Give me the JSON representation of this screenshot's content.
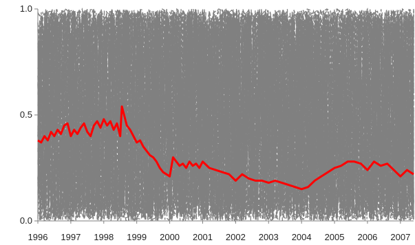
{
  "chart_data": {
    "type": "line",
    "title": "",
    "xlabel": "",
    "ylabel": "",
    "ylim": [
      0.0,
      1.0
    ],
    "xlim": [
      1996.0,
      2007.4
    ],
    "y_ticks": [
      {
        "value": 0.0,
        "label": "0.0"
      },
      {
        "value": 0.5,
        "label": "0.5"
      },
      {
        "value": 1.0,
        "label": "1.0"
      }
    ],
    "x_ticks": [
      {
        "value": 1996,
        "label": "1996"
      },
      {
        "value": 1997,
        "label": "1997"
      },
      {
        "value": 1998,
        "label": "1998"
      },
      {
        "value": 1999,
        "label": "1999"
      },
      {
        "value": 2000,
        "label": "2000"
      },
      {
        "value": 2001,
        "label": "2001"
      },
      {
        "value": 2002,
        "label": "2002"
      },
      {
        "value": 2003,
        "label": "2003"
      },
      {
        "value": 2004,
        "label": "2004"
      },
      {
        "value": 2005,
        "label": "2005"
      },
      {
        "value": 2006,
        "label": "2006"
      },
      {
        "value": 2007,
        "label": "2007"
      }
    ],
    "background_series": {
      "color": "#808080",
      "style": "dashed",
      "description_count_hint": "many"
    },
    "series": [
      {
        "color": "#ff0000",
        "x": [
          1996.0,
          1996.1,
          1996.2,
          1996.3,
          1996.4,
          1996.5,
          1996.6,
          1996.7,
          1996.8,
          1996.9,
          1997.0,
          1997.1,
          1997.2,
          1997.3,
          1997.4,
          1997.5,
          1997.6,
          1997.7,
          1997.8,
          1997.9,
          1998.0,
          1998.1,
          1998.2,
          1998.3,
          1998.4,
          1998.5,
          1998.55,
          1998.6,
          1998.7,
          1998.8,
          1998.9,
          1999.0,
          1999.1,
          1999.2,
          1999.3,
          1999.4,
          1999.5,
          1999.6,
          1999.7,
          1999.8,
          1999.9,
          2000.0,
          2000.1,
          2000.2,
          2000.3,
          2000.4,
          2000.5,
          2000.6,
          2000.7,
          2000.8,
          2000.9,
          2001.0,
          2001.2,
          2001.4,
          2001.6,
          2001.8,
          2002.0,
          2002.2,
          2002.4,
          2002.6,
          2002.8,
          2003.0,
          2003.2,
          2003.4,
          2003.6,
          2003.8,
          2004.0,
          2004.2,
          2004.4,
          2004.6,
          2004.8,
          2005.0,
          2005.2,
          2005.4,
          2005.6,
          2005.8,
          2006.0,
          2006.2,
          2006.4,
          2006.6,
          2006.8,
          2007.0,
          2007.2,
          2007.4
        ],
        "values": [
          0.38,
          0.37,
          0.4,
          0.38,
          0.42,
          0.4,
          0.43,
          0.41,
          0.45,
          0.46,
          0.4,
          0.43,
          0.41,
          0.44,
          0.46,
          0.42,
          0.4,
          0.45,
          0.47,
          0.44,
          0.48,
          0.45,
          0.47,
          0.43,
          0.46,
          0.4,
          0.54,
          0.51,
          0.45,
          0.43,
          0.4,
          0.37,
          0.38,
          0.35,
          0.33,
          0.31,
          0.3,
          0.28,
          0.25,
          0.23,
          0.22,
          0.21,
          0.3,
          0.28,
          0.26,
          0.27,
          0.25,
          0.28,
          0.26,
          0.27,
          0.25,
          0.28,
          0.25,
          0.24,
          0.23,
          0.22,
          0.19,
          0.22,
          0.2,
          0.19,
          0.19,
          0.18,
          0.19,
          0.18,
          0.17,
          0.16,
          0.15,
          0.16,
          0.19,
          0.21,
          0.23,
          0.25,
          0.26,
          0.28,
          0.28,
          0.27,
          0.24,
          0.28,
          0.26,
          0.27,
          0.24,
          0.21,
          0.24,
          0.22
        ]
      }
    ]
  }
}
